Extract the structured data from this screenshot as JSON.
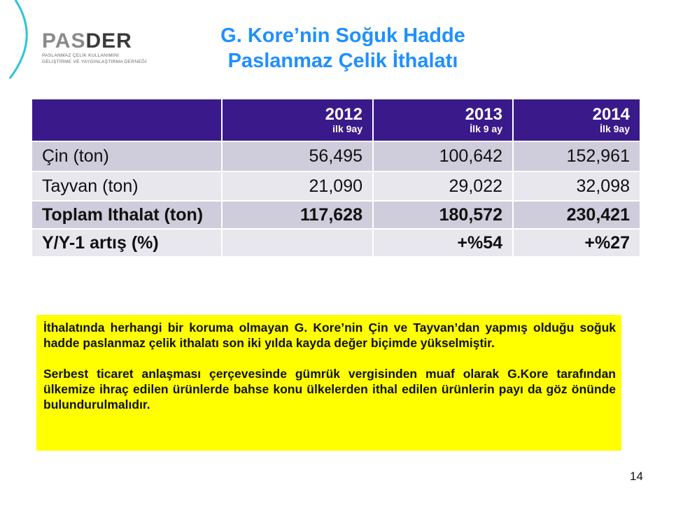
{
  "logo": {
    "name": "PASDER",
    "line1": "PASLANMAZ ÇELİK KULLANIMINI",
    "line2": "GELİŞTİRME VE YAYGINLAŞTIRMA DERNEĞİ"
  },
  "title": {
    "line1": "G. Kore’nin Soğuk Hadde",
    "line2": "Paslanmaz Çelik İthalatı"
  },
  "table": {
    "headers": [
      {
        "year": "2012",
        "sub": "ilk 9ay"
      },
      {
        "year": "2013",
        "sub": "İlk 9 ay"
      },
      {
        "year": "2014",
        "sub": "İlk 9ay"
      }
    ],
    "rows": [
      {
        "label": "Çin (ton)",
        "values": [
          "56,495",
          "100,642",
          "152,961"
        ]
      },
      {
        "label": "Tayvan (ton)",
        "values": [
          "21,090",
          "29,022",
          "32,098"
        ]
      },
      {
        "label": "Toplam Ithalat (ton)",
        "values": [
          "117,628",
          "180,572",
          "230,421"
        ]
      },
      {
        "label": "Y/Y-1 artış  (%)",
        "values": [
          "",
          "+%54",
          "+%27"
        ]
      }
    ]
  },
  "note": {
    "p1": "İthalatında herhangi bir koruma olmayan G. Kore’nin Çin ve Tayvan’dan yapmış olduğu soğuk hadde paslanmaz çelik ithalatı son iki yılda kayda değer biçimde yükselmiştir.",
    "p2": "Serbest ticaret anlaşması çerçevesinde gümrük vergisinden muaf olarak G.Kore tarafından ülkemize ihraç edilen ürünlerde bahse konu ülkelerden ithal edilen ürünlerin payı da göz önünde bulundurulmalıdır."
  },
  "page_number": "14",
  "colors": {
    "header": "#3a1a8a",
    "title": "#1e90ff",
    "note_bg": "#ffff00"
  }
}
